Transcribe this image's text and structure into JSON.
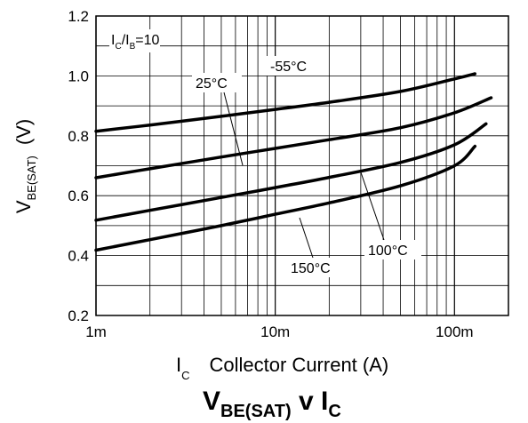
{
  "chart_data": {
    "type": "line",
    "title": {
      "main": "V",
      "main_sub": "BE(SAT)",
      "mid": " v I",
      "mid_sub": "C"
    },
    "xlabel": {
      "symbol": "I",
      "symbol_sub": "C",
      "text": "Collector Current (A)"
    },
    "ylabel": {
      "symbol": "V",
      "symbol_sub": "BE(SAT)",
      "unit": "(V)"
    },
    "x_scale": "log",
    "xlim": [
      0.001,
      0.2
    ],
    "ylim": [
      0.2,
      1.2
    ],
    "x_ticks": [
      {
        "value": 0.001,
        "label": "1m"
      },
      {
        "value": 0.01,
        "label": "10m"
      },
      {
        "value": 0.1,
        "label": "100m"
      }
    ],
    "y_ticks": [
      {
        "value": 0.2,
        "label": "0.2"
      },
      {
        "value": 0.4,
        "label": "0.4"
      },
      {
        "value": 0.6,
        "label": "0.6"
      },
      {
        "value": 0.8,
        "label": "0.8"
      },
      {
        "value": 1.0,
        "label": "1.0"
      },
      {
        "value": 1.2,
        "label": "1.2"
      }
    ],
    "grid": true,
    "condition_note": {
      "a": "I",
      "a_sub": "C",
      "b": "/I",
      "b_sub": "B",
      "c": "=10"
    },
    "series": [
      {
        "name": "-55°C",
        "points": [
          [
            0.001,
            0.815
          ],
          [
            0.002,
            0.836
          ],
          [
            0.005,
            0.865
          ],
          [
            0.01,
            0.888
          ],
          [
            0.02,
            0.912
          ],
          [
            0.05,
            0.948
          ],
          [
            0.1,
            0.99
          ],
          [
            0.13,
            1.007
          ]
        ]
      },
      {
        "name": "25°C",
        "points": [
          [
            0.001,
            0.66
          ],
          [
            0.002,
            0.69
          ],
          [
            0.005,
            0.729
          ],
          [
            0.01,
            0.758
          ],
          [
            0.02,
            0.787
          ],
          [
            0.05,
            0.827
          ],
          [
            0.1,
            0.877
          ],
          [
            0.16,
            0.927
          ]
        ]
      },
      {
        "name": "100°C",
        "points": [
          [
            0.001,
            0.518
          ],
          [
            0.002,
            0.551
          ],
          [
            0.005,
            0.594
          ],
          [
            0.01,
            0.627
          ],
          [
            0.02,
            0.661
          ],
          [
            0.05,
            0.711
          ],
          [
            0.1,
            0.77
          ],
          [
            0.15,
            0.84
          ]
        ]
      },
      {
        "name": "150°C",
        "points": [
          [
            0.001,
            0.418
          ],
          [
            0.002,
            0.453
          ],
          [
            0.005,
            0.5
          ],
          [
            0.01,
            0.538
          ],
          [
            0.02,
            0.576
          ],
          [
            0.05,
            0.633
          ],
          [
            0.1,
            0.7
          ],
          [
            0.13,
            0.765
          ]
        ]
      }
    ]
  }
}
